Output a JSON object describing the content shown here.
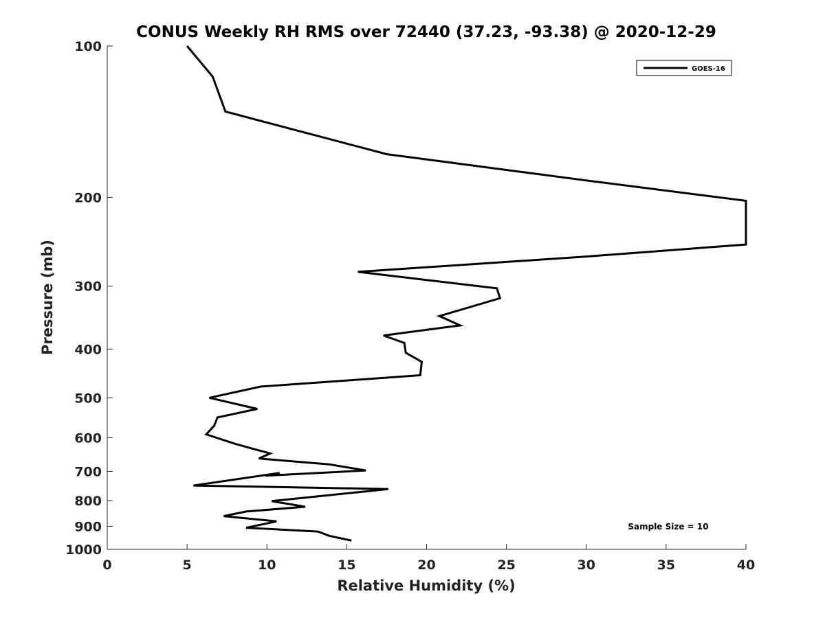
{
  "chart_data": {
    "type": "line",
    "title": "CONUS Weekly RH RMS over 72440 (37.23, -93.38) @ 2020-12-29",
    "xlabel": "Relative Humidity (%)",
    "ylabel": "Pressure (mb)",
    "xlim": [
      0,
      40
    ],
    "ylim": [
      100,
      1000
    ],
    "y_scale": "log",
    "y_reversed": true,
    "x_ticks": [
      0,
      5,
      10,
      15,
      20,
      25,
      30,
      35,
      40
    ],
    "y_ticks": [
      100,
      200,
      300,
      400,
      500,
      600,
      700,
      800,
      900,
      1000
    ],
    "legend": {
      "position": "top-right",
      "entries": [
        "GOES-16"
      ]
    },
    "annotation": "Sample Size = 10",
    "series": [
      {
        "name": "GOES-16",
        "color": "#000000",
        "x": [
          5.0,
          6.6,
          7.4,
          17.5,
          30.0,
          40.0,
          40.0,
          30.0,
          15.7,
          24.4,
          24.6,
          20.8,
          22.1,
          17.3,
          18.6,
          18.7,
          19.7,
          19.6,
          9.6,
          6.4,
          9.4,
          6.9,
          6.7,
          6.2,
          8.0,
          10.2,
          9.5,
          13.9,
          16.2,
          9.9,
          10.8,
          5.4,
          17.6,
          10.3,
          12.4,
          8.7,
          7.3,
          10.6,
          8.7,
          13.2,
          13.9,
          15.3
        ],
        "y": [
          100,
          115,
          135,
          164,
          185,
          203,
          248,
          262,
          281,
          303,
          317,
          344,
          359,
          376,
          389,
          407,
          424,
          451,
          475,
          500,
          526,
          547,
          568,
          591,
          617,
          645,
          660,
          678,
          697,
          714,
          705,
          747,
          759,
          802,
          823,
          841,
          859,
          880,
          906,
          922,
          940,
          961
        ]
      }
    ]
  }
}
